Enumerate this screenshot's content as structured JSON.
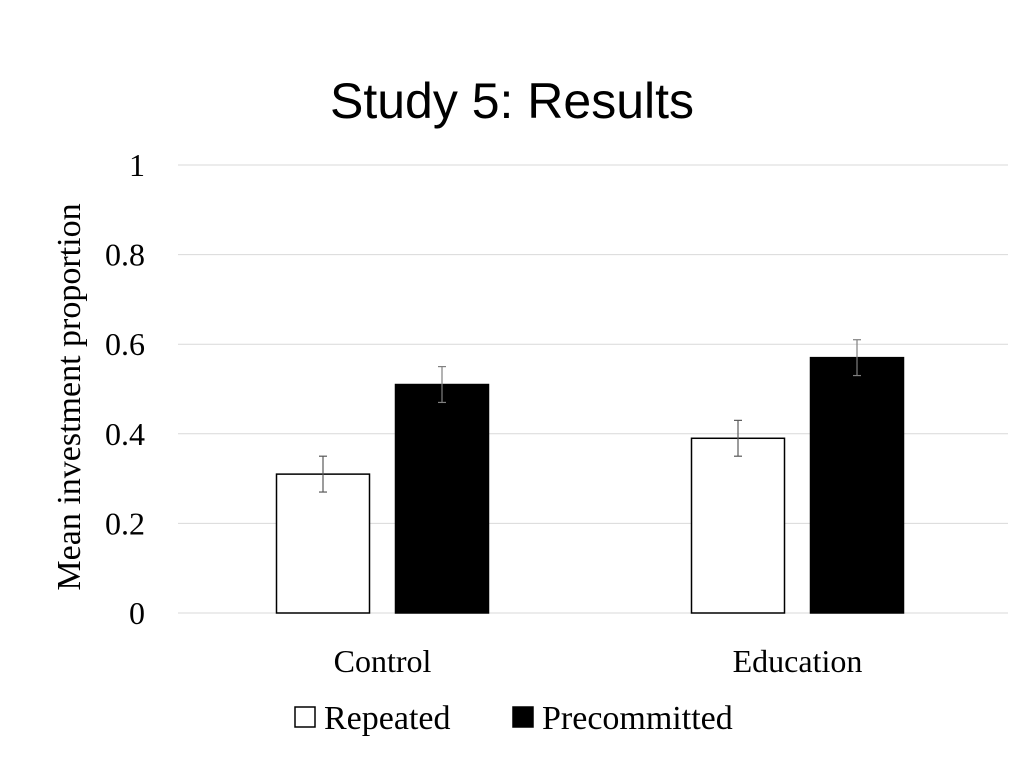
{
  "chart_data": {
    "type": "bar",
    "title": "Study 5: Results",
    "xlabel": "",
    "ylabel": "Mean investment proportion",
    "categories": [
      "Control",
      "Education"
    ],
    "series": [
      {
        "name": "Repeated",
        "values": [
          0.31,
          0.39
        ],
        "errors": [
          0.04,
          0.04
        ],
        "fill": "#ffffff",
        "stroke": "#000000"
      },
      {
        "name": "Precommitted",
        "values": [
          0.51,
          0.57
        ],
        "errors": [
          0.04,
          0.04
        ],
        "fill": "#000000",
        "stroke": "#000000"
      }
    ],
    "ylim": [
      0,
      1
    ],
    "yticks": [
      "0",
      "0.2",
      "0.4",
      "0.6",
      "0.8",
      "1"
    ],
    "grid": true,
    "legend_position": "bottom",
    "colors": {
      "grid": "#d9d9d9",
      "error_bar": "#595959"
    }
  }
}
